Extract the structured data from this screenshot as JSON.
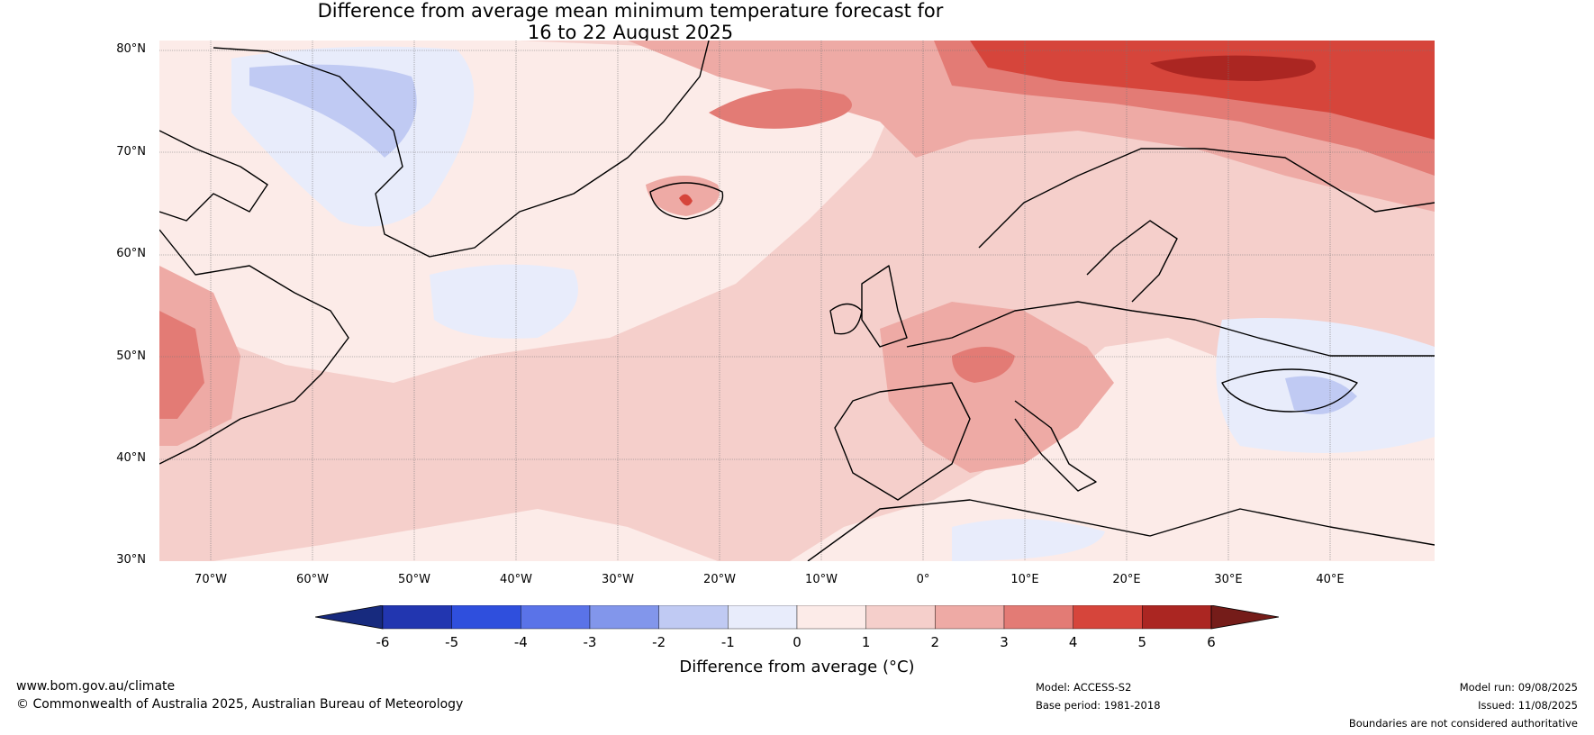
{
  "title": {
    "line1": "Difference from average mean minimum temperature forecast for",
    "line2": "16 to 22 August 2025"
  },
  "map": {
    "region": "North Atlantic and Europe",
    "latitude_labels": [
      "80°N",
      "70°N",
      "60°N",
      "50°N",
      "40°N",
      "30°N"
    ],
    "longitude_labels": [
      "70°W",
      "60°W",
      "50°W",
      "40°W",
      "30°W",
      "20°W",
      "10°W",
      "0°",
      "10°E",
      "20°E",
      "30°E",
      "40°E"
    ]
  },
  "colorbar": {
    "ticks": [
      "-6",
      "-5",
      "-4",
      "-3",
      "-2",
      "-1",
      "0",
      "1",
      "2",
      "3",
      "4",
      "5",
      "6"
    ],
    "colors": [
      "#172a7e",
      "#2236b0",
      "#2f4fdd",
      "#5a73e8",
      "#8296eb",
      "#c0caf3",
      "#e8ecfb",
      "#fcebe8",
      "#f5cfcb",
      "#eeaaa5",
      "#e37b75",
      "#d6453b",
      "#ab2622",
      "#751c19"
    ],
    "label": "Difference from average (°C)"
  },
  "footer": {
    "website": "www.bom.gov.au/climate",
    "copyright": "© Commonwealth of Australia 2025, Australian Bureau of Meteorology",
    "model": "Model: ACCESS-S2",
    "base_period": "Base period: 1981-2018",
    "model_run": "Model run: 09/08/2025",
    "issued": "Issued: 11/08/2025",
    "disclaimer": "Boundaries are not considered authoritative"
  }
}
